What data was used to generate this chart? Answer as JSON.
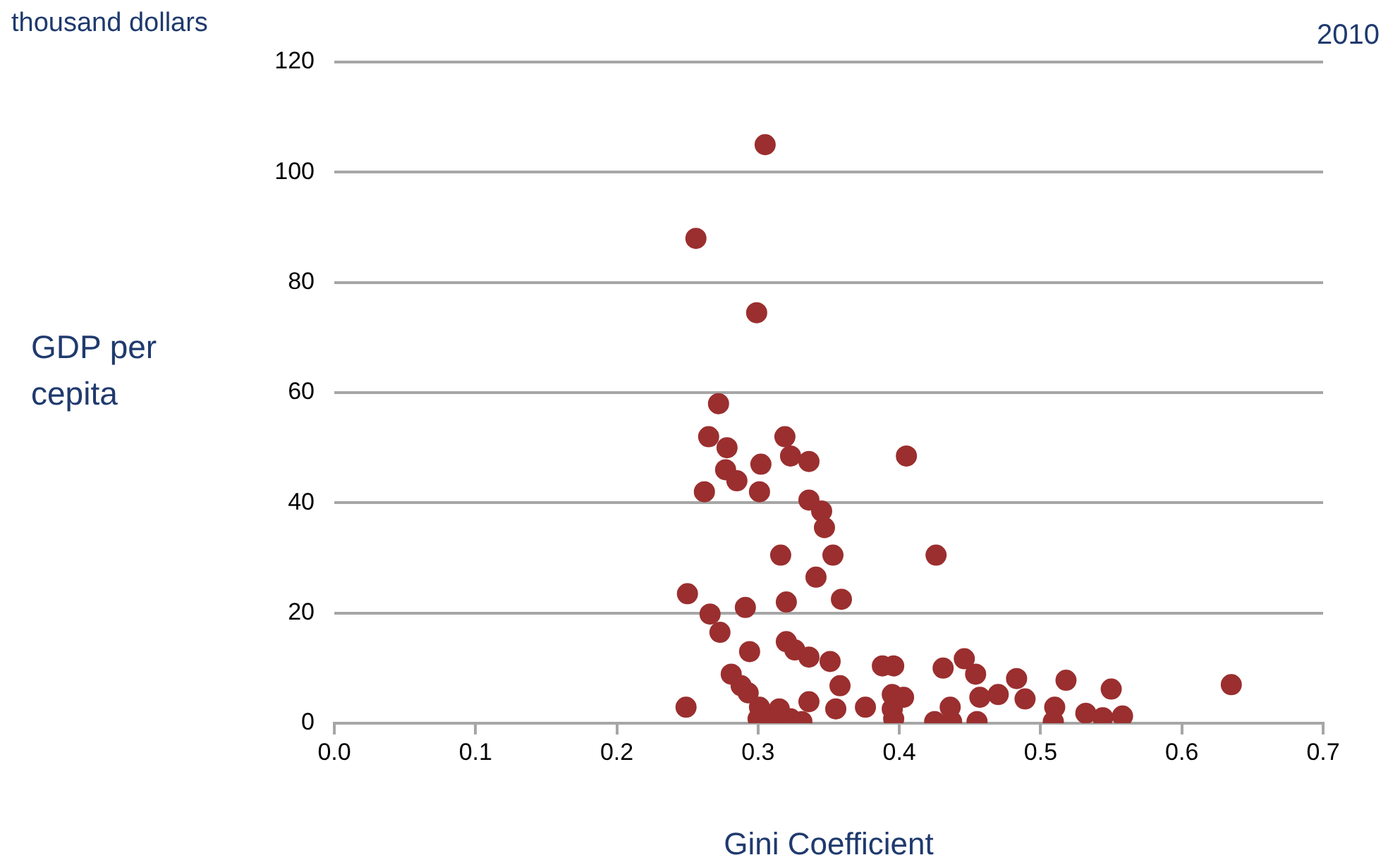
{
  "chart_data": {
    "type": "scatter",
    "title": "2010",
    "xlabel": "Gini Coefficient",
    "ylabel": "GDP per cepita",
    "annotations": [
      "thousand dollars"
    ],
    "xlim": [
      0,
      0.7
    ],
    "xticks": [
      {
        "value": 0,
        "label": "0.0"
      },
      0.1,
      0.2,
      0.3,
      0.4,
      0.5,
      0.6,
      0.7
    ],
    "ylim": [
      0,
      120
    ],
    "yticks": [
      0,
      20,
      40,
      60,
      80,
      100,
      120
    ],
    "grid": "y",
    "marker": "circle",
    "legend": false,
    "series": [
      {
        "color": "#9b2f2f",
        "x": [
          0.305,
          0.256,
          0.299,
          0.272,
          0.319,
          0.265,
          0.278,
          0.302,
          0.323,
          0.336,
          0.405,
          0.277,
          0.285,
          0.262,
          0.301,
          0.336,
          0.345,
          0.347,
          0.316,
          0.353,
          0.426,
          0.341,
          0.25,
          0.32,
          0.359,
          0.266,
          0.291,
          0.273,
          0.294,
          0.32,
          0.326,
          0.336,
          0.351,
          0.388,
          0.396,
          0.431,
          0.281,
          0.288,
          0.293,
          0.358,
          0.249,
          0.301,
          0.315,
          0.336,
          0.355,
          0.376,
          0.395,
          0.403,
          0.395,
          0.396,
          0.3,
          0.31,
          0.323,
          0.331,
          0.425,
          0.436,
          0.446,
          0.454,
          0.457,
          0.47,
          0.483,
          0.489,
          0.518,
          0.51,
          0.509,
          0.532,
          0.544,
          0.558,
          0.55,
          0.455,
          0.437,
          0.635
        ],
        "values": [
          105,
          88,
          74.5,
          58,
          52,
          52,
          50,
          47,
          48.5,
          47.5,
          48.5,
          46,
          44,
          42,
          42,
          40.5,
          38.5,
          35.5,
          30.5,
          30.5,
          30.5,
          26.5,
          23.5,
          22,
          22.5,
          19.8,
          21,
          16.5,
          13,
          14.8,
          13.3,
          12,
          11.2,
          10.4,
          10.4,
          10,
          8.9,
          6.8,
          5.5,
          6.8,
          2.9,
          2.9,
          2.6,
          3.9,
          2.6,
          2.9,
          5.2,
          4.7,
          2.6,
          0.8,
          0.8,
          0.8,
          0.8,
          0.3,
          0.3,
          2.9,
          11.7,
          8.9,
          4.7,
          5.2,
          8.1,
          4.4,
          7.8,
          2.9,
          0.3,
          1.8,
          1,
          1.3,
          6.2,
          0.3,
          0.3,
          7
        ]
      }
    ]
  }
}
